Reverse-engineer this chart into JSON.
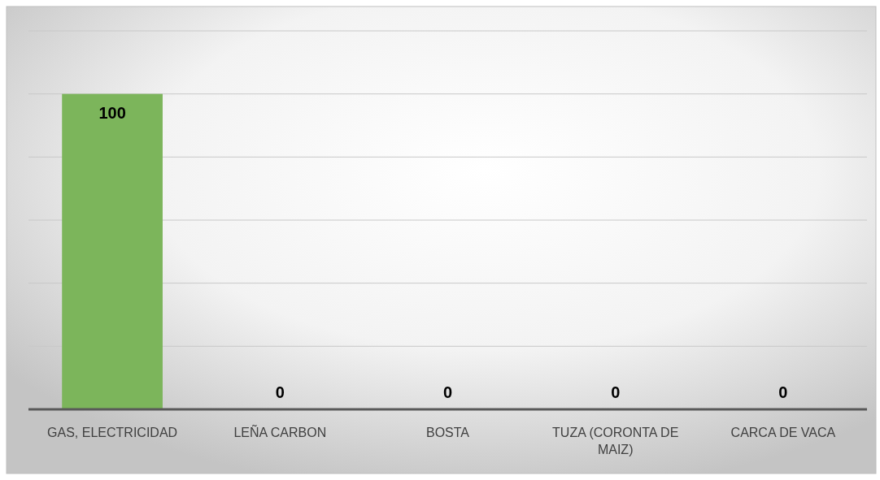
{
  "chart_data": {
    "type": "bar",
    "categories": [
      "GAS, ELECTRICIDAD",
      "LEÑA CARBON",
      "BOSTA",
      "TUZA (CORONTA DE MAIZ)",
      "CARCA DE VACA"
    ],
    "values": [
      100,
      0,
      0,
      0,
      0
    ],
    "color": "#7cb55b",
    "ylim": [
      0,
      120
    ],
    "yticks": [
      {
        "value": 0,
        "label": null
      },
      {
        "value": 20,
        "label": null
      },
      {
        "value": 40,
        "label": null
      },
      {
        "value": 60,
        "label": null
      },
      {
        "value": 80,
        "label": null
      },
      {
        "value": 100,
        "label": null
      },
      {
        "value": 120,
        "label": null
      }
    ],
    "grid": true,
    "data_labels": true,
    "tick_labels": "x"
  }
}
